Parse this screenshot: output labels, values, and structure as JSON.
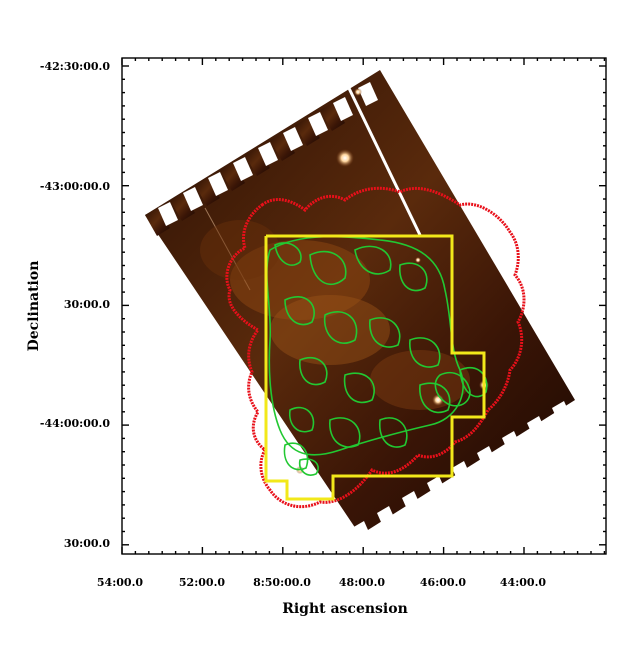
{
  "image": {
    "subject": "astronomical-image-with-contours",
    "colors": {
      "image_dark": "#1a0a02",
      "image_mid": "#4a2008",
      "image_bright": "#b85a1a",
      "red_contour": "#e8101a",
      "green_contour": "#22c832",
      "yellow_region": "#f2e81a"
    }
  },
  "axes": {
    "xlabel": "Right ascension",
    "ylabel": "Declination",
    "x_tick_labels": [
      "54:00.0",
      "52:00.0",
      "8:50:00.0",
      "48:00.0",
      "46:00.0",
      "44:00.0"
    ],
    "y_tick_labels": [
      "-42:30:00.0",
      "-43:00:00.0",
      "30:00.0",
      "-44:00:00.0",
      "30:00.0"
    ]
  }
}
